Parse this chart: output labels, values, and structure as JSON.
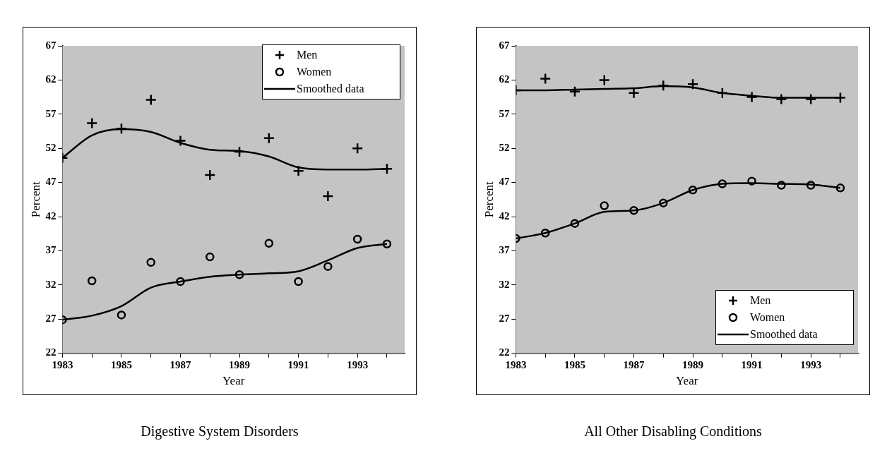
{
  "chart_data": [
    {
      "type": "scatter",
      "title": "Digestive System Disorders",
      "xlabel": "Year",
      "ylabel": "Percent",
      "x": [
        1983,
        1984,
        1985,
        1986,
        1987,
        1988,
        1989,
        1990,
        1991,
        1992,
        1993,
        1994
      ],
      "series": [
        {
          "name": "Men",
          "type": "scatter",
          "marker": "cross",
          "color": "#000000",
          "values": [
            50.6,
            55.7,
            54.9,
            59.1,
            53.1,
            48.1,
            51.5,
            53.5,
            48.7,
            45.0,
            52.0,
            49.0
          ]
        },
        {
          "name": "Women",
          "type": "scatter",
          "marker": "circle",
          "color": "#000000",
          "values": [
            26.9,
            32.6,
            27.6,
            35.3,
            32.5,
            36.1,
            33.5,
            38.1,
            32.5,
            34.7,
            38.7,
            38.0
          ]
        },
        {
          "name": "Smoothed data",
          "type": "line",
          "marker": "none",
          "line_style": "solid",
          "color": "#000000",
          "values": [
            50.6,
            53.9,
            54.8,
            54.4,
            52.8,
            51.8,
            51.6,
            50.8,
            49.2,
            48.9,
            48.9,
            49.0
          ]
        },
        {
          "type": "line",
          "marker": "none",
          "line_style": "solid",
          "color": "#000000",
          "values": [
            26.9,
            27.5,
            28.9,
            31.6,
            32.5,
            33.2,
            33.5,
            33.7,
            34.0,
            35.6,
            37.4,
            38.0
          ]
        }
      ],
      "xlim": [
        1983,
        1994.6
      ],
      "xticks": [
        1983,
        {
          "value": 1984,
          "label": null
        },
        1985,
        {
          "value": 1986,
          "label": null
        },
        1987,
        {
          "value": 1988,
          "label": null
        },
        1989,
        {
          "value": 1990,
          "label": null
        },
        1991,
        {
          "value": 1992,
          "label": null
        },
        1993,
        {
          "value": 1994,
          "label": null
        }
      ],
      "ylim": [
        22,
        67
      ],
      "yticks": [
        22,
        27,
        32,
        37,
        42,
        47,
        52,
        57,
        62,
        67
      ],
      "legend": "top right"
    },
    {
      "type": "scatter",
      "title": "All Other Disabling Conditions",
      "xlabel": "Year",
      "ylabel": "Percent",
      "x": [
        1983,
        1984,
        1985,
        1986,
        1987,
        1988,
        1989,
        1990,
        1991,
        1992,
        1993,
        1994
      ],
      "series": [
        {
          "name": "Men",
          "type": "scatter",
          "marker": "cross",
          "color": "#000000",
          "values": [
            60.5,
            62.2,
            60.3,
            62.0,
            60.1,
            61.2,
            61.4,
            60.1,
            59.5,
            59.2,
            59.2,
            59.4
          ]
        },
        {
          "name": "Women",
          "type": "scatter",
          "marker": "circle",
          "color": "#000000",
          "values": [
            38.8,
            39.6,
            41.0,
            43.6,
            42.9,
            44.0,
            45.9,
            46.8,
            47.2,
            46.6,
            46.6,
            46.2
          ]
        },
        {
          "name": "Smoothed data",
          "type": "line",
          "marker": "none",
          "line_style": "solid",
          "color": "#000000",
          "values": [
            60.5,
            60.5,
            60.6,
            60.7,
            60.8,
            61.1,
            60.9,
            60.1,
            59.7,
            59.4,
            59.4,
            59.4
          ]
        },
        {
          "type": "line",
          "marker": "none",
          "line_style": "solid",
          "color": "#000000",
          "values": [
            38.8,
            39.6,
            41.0,
            42.7,
            42.9,
            44.0,
            45.9,
            46.8,
            46.9,
            46.8,
            46.7,
            46.2
          ]
        }
      ],
      "xlim": [
        1983,
        1994.6
      ],
      "xticks": [
        1983,
        {
          "value": 1984,
          "label": null
        },
        1985,
        {
          "value": 1986,
          "label": null
        },
        1987,
        {
          "value": 1988,
          "label": null
        },
        1989,
        {
          "value": 1990,
          "label": null
        },
        1991,
        {
          "value": 1992,
          "label": null
        },
        1993,
        {
          "value": 1994,
          "label": null
        }
      ],
      "ylim": [
        22,
        67
      ],
      "yticks": [
        22,
        27,
        32,
        37,
        42,
        47,
        52,
        57,
        62,
        67
      ],
      "legend": "bottom right"
    }
  ]
}
